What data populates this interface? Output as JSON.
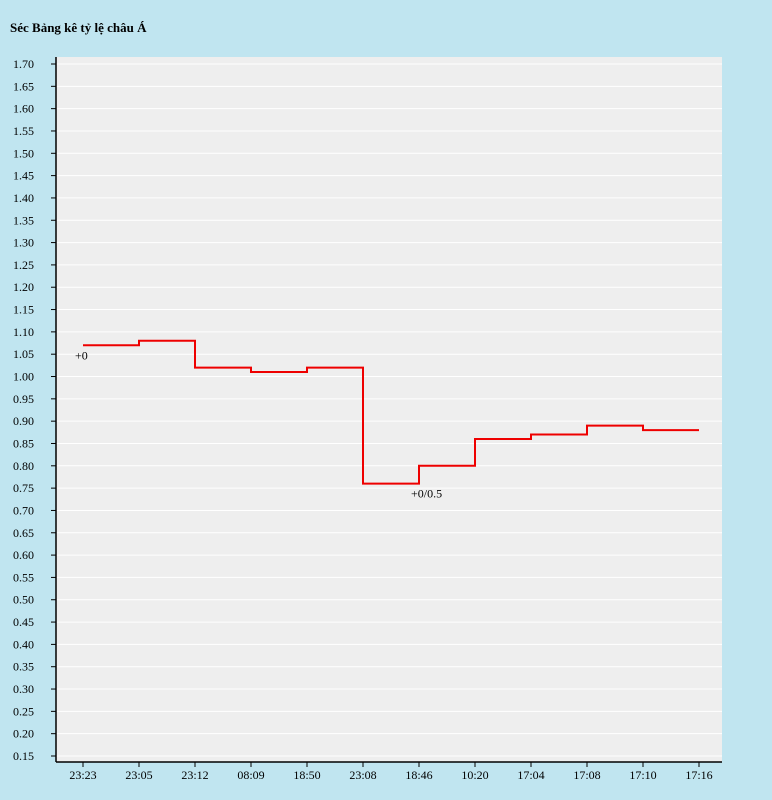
{
  "chart_data": {
    "type": "line",
    "title": "Séc Bảng kê tỷ lệ châu Á",
    "xlabel": "",
    "ylabel": "",
    "step": true,
    "grid": true,
    "x": [
      "23:23",
      "23:05",
      "23:12",
      "08:09",
      "18:50",
      "23:08",
      "18:46",
      "10:20",
      "17:04",
      "17:08",
      "17:10",
      "17:16"
    ],
    "series": [
      {
        "values": [
          1.07,
          1.08,
          1.02,
          1.01,
          1.02,
          0.76,
          0.8,
          0.86,
          0.87,
          0.89,
          0.88,
          0.88
        ],
        "color": "#ee0000"
      }
    ],
    "yticks": [
      "0.15",
      "0.20",
      "0.25",
      "0.30",
      "0.35",
      "0.40",
      "0.45",
      "0.50",
      "0.55",
      "0.60",
      "0.65",
      "0.70",
      "0.75",
      "0.80",
      "0.85",
      "0.90",
      "0.95",
      "1.00",
      "1.05",
      "1.10",
      "1.15",
      "1.20",
      "1.25",
      "1.30",
      "1.35",
      "1.40",
      "1.45",
      "1.50",
      "1.55",
      "1.60",
      "1.65",
      "1.70"
    ],
    "ylim": [
      0.15,
      1.7
    ],
    "annotations": [
      {
        "text": "+0",
        "x_index": 0,
        "y": 1.07
      },
      {
        "text": "+0/0.5",
        "x_index": 6,
        "y": 0.76
      }
    ],
    "colors": {
      "background": "#c0e5f0",
      "plot": "#eeeeee",
      "grid": "#ffffff",
      "line": "#ee0000"
    }
  }
}
